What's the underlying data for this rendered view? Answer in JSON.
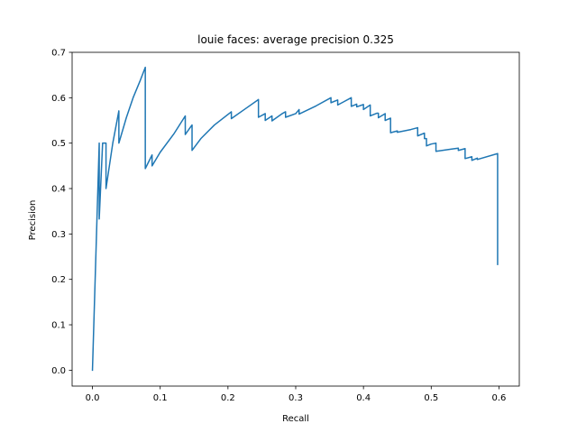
{
  "chart_data": {
    "type": "line",
    "title": "louie faces: average precision 0.325",
    "xlabel": "Recall",
    "ylabel": "Precision",
    "xlim": [
      -0.03,
      0.63
    ],
    "ylim": [
      -0.035,
      0.7
    ],
    "xticks": [
      0.0,
      0.1,
      0.2,
      0.3,
      0.4,
      0.5,
      0.6
    ],
    "xtick_labels": [
      "0.0",
      "0.1",
      "0.2",
      "0.3",
      "0.4",
      "0.5",
      "0.6"
    ],
    "yticks": [
      0.0,
      0.1,
      0.2,
      0.3,
      0.4,
      0.5,
      0.6,
      0.7
    ],
    "ytick_labels": [
      "0.0",
      "0.1",
      "0.2",
      "0.3",
      "0.4",
      "0.5",
      "0.6",
      "0.7"
    ],
    "grid": false,
    "line_color": "#1f77b4",
    "series": [
      {
        "x": [
          0.0,
          0.005,
          0.01,
          0.01,
          0.015,
          0.02,
          0.02,
          0.03,
          0.039,
          0.039,
          0.05,
          0.06,
          0.07,
          0.078,
          0.078,
          0.088,
          0.088,
          0.1,
          0.12,
          0.137,
          0.137,
          0.145,
          0.147,
          0.147,
          0.16,
          0.18,
          0.205,
          0.205,
          0.225,
          0.245,
          0.245,
          0.255,
          0.255,
          0.265,
          0.265,
          0.28,
          0.285,
          0.285,
          0.3,
          0.305,
          0.305,
          0.33,
          0.352,
          0.352,
          0.362,
          0.362,
          0.382,
          0.382,
          0.39,
          0.39,
          0.4,
          0.4,
          0.41,
          0.41,
          0.42,
          0.422,
          0.422,
          0.432,
          0.432,
          0.44,
          0.44,
          0.45,
          0.45,
          0.47,
          0.48,
          0.48,
          0.49,
          0.49,
          0.493,
          0.493,
          0.5,
          0.507,
          0.507,
          0.53,
          0.54,
          0.54,
          0.55,
          0.55,
          0.56,
          0.56,
          0.568,
          0.568,
          0.598,
          0.598
        ],
        "y": [
          0.0,
          0.25,
          0.5,
          0.333,
          0.5,
          0.5,
          0.4,
          0.5,
          0.571,
          0.5,
          0.556,
          0.6,
          0.636,
          0.667,
          0.444,
          0.474,
          0.45,
          0.48,
          0.52,
          0.56,
          0.519,
          0.536,
          0.54,
          0.484,
          0.51,
          0.54,
          0.569,
          0.554,
          0.575,
          0.596,
          0.557,
          0.565,
          0.55,
          0.56,
          0.549,
          0.565,
          0.569,
          0.557,
          0.565,
          0.574,
          0.564,
          0.582,
          0.6,
          0.589,
          0.595,
          0.584,
          0.6,
          0.581,
          0.586,
          0.58,
          0.585,
          0.574,
          0.584,
          0.56,
          0.566,
          0.566,
          0.556,
          0.565,
          0.55,
          0.555,
          0.523,
          0.527,
          0.524,
          0.53,
          0.534,
          0.516,
          0.522,
          0.51,
          0.51,
          0.494,
          0.498,
          0.5,
          0.482,
          0.487,
          0.489,
          0.484,
          0.488,
          0.466,
          0.47,
          0.462,
          0.467,
          0.464,
          0.477,
          0.233
        ]
      }
    ]
  }
}
